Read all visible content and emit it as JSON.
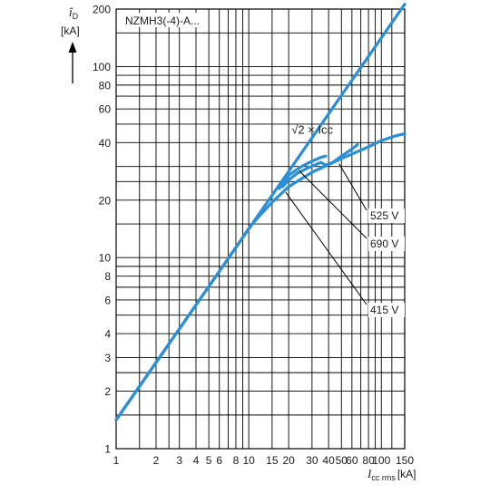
{
  "chart_data": {
    "type": "line",
    "title": "NZMH3(-4)-A...",
    "ylabel": {
      "symbol": "î",
      "sub": "D",
      "unit": "[kA]"
    },
    "xlabel": {
      "symbol": "I",
      "sub": "cc rms",
      "unit": "[kA]"
    },
    "xscale": "log",
    "yscale": "log",
    "xlim": [
      1,
      150
    ],
    "ylim": [
      1,
      200
    ],
    "grid": true,
    "x_ticks": [
      1,
      2,
      3,
      4,
      5,
      6,
      8,
      10,
      15,
      20,
      30,
      40,
      50,
      60,
      80,
      100,
      150
    ],
    "y_ticks": [
      1,
      2,
      3,
      4,
      6,
      8,
      10,
      20,
      40,
      60,
      80,
      100,
      200
    ],
    "x_minor_grid": [
      1.5,
      2.5,
      7,
      9,
      70,
      90,
      120
    ],
    "y_minor_grid": [
      1.5,
      2.5,
      5,
      7,
      9,
      15,
      25,
      30,
      50,
      70,
      90,
      150
    ],
    "curve_color": "#2a8fd6",
    "series": [
      {
        "name": "√2 × Icc",
        "x": [
          1,
          150
        ],
        "y": [
          1.414,
          212
        ]
      },
      {
        "name": "415 V",
        "x": [
          1,
          8,
          10,
          12,
          15,
          20,
          30,
          50,
          80,
          100,
          130,
          150
        ],
        "y": [
          1.414,
          11.3,
          14.2,
          16.5,
          19.5,
          23.5,
          28,
          33,
          38,
          41,
          43.5,
          44.5
        ]
      },
      {
        "name": "525 V",
        "x": [
          18,
          20,
          23,
          28,
          35,
          38,
          43,
          50,
          60,
          66
        ],
        "y": [
          23.5,
          25.5,
          27.5,
          29.5,
          31.5,
          30.5,
          31.5,
          34,
          37,
          39
        ]
      },
      {
        "name": "690 V",
        "x": [
          17,
          20,
          25,
          30,
          35,
          38
        ],
        "y": [
          23,
          27,
          30,
          32,
          33.5,
          34
        ]
      }
    ],
    "annotations": [
      {
        "label": "525 V",
        "target": [
          48,
          31
        ]
      },
      {
        "label": "690 V",
        "target": [
          24,
          28.5
        ]
      },
      {
        "label": "415 V",
        "target": [
          19,
          22
        ]
      }
    ]
  }
}
